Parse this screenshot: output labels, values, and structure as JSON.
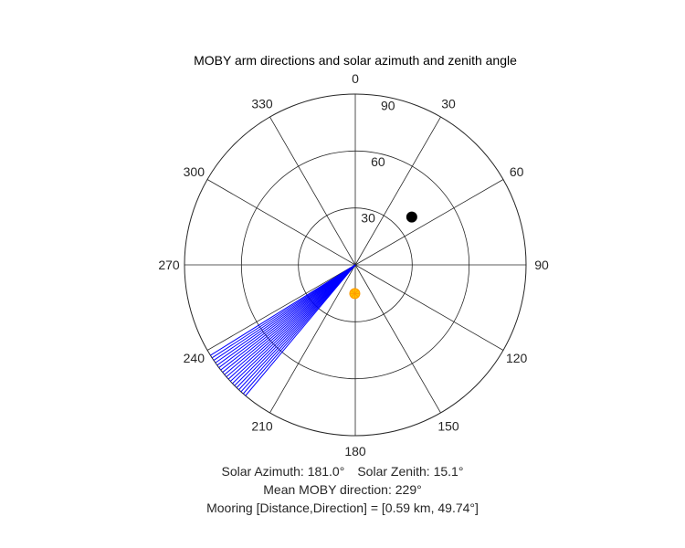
{
  "chart_data": {
    "type": "polar",
    "title": "MOBY arm directions and solar azimuth and zenith angle",
    "theta_direction": "clockwise",
    "theta_zero": "top",
    "theta_tick_labels": [
      "0",
      "30",
      "60",
      "90",
      "120",
      "150",
      "180",
      "210",
      "240",
      "270",
      "300",
      "330"
    ],
    "r_tick_labels": [
      "30",
      "60",
      "90"
    ],
    "r_max": 90,
    "grid": true,
    "series": [
      {
        "type": "lines",
        "color": "#0000ff",
        "r": 90,
        "theta_deg": [
          220,
          221,
          222,
          223,
          224,
          225,
          226,
          227,
          228,
          229,
          230,
          231,
          232,
          233,
          234,
          235,
          236,
          237,
          238
        ]
      },
      {
        "type": "marker",
        "marker": "filled-circle",
        "color": "#000000",
        "theta_deg": 49.74,
        "r": 39
      },
      {
        "type": "marker",
        "marker": "sun",
        "color": "#ffc000",
        "theta_deg": 181.0,
        "r": 15.1
      }
    ],
    "annotations": {
      "solar_azimuth_label": "Solar Azimuth:",
      "solar_azimuth_value": "181.0°",
      "solar_zenith_label": "Solar Zenith:",
      "solar_zenith_value": "15.1°",
      "mean_direction_label": "Mean MOBY direction:",
      "mean_direction_value": "229°",
      "mooring_label": "Mooring [Distance,Direction] =",
      "mooring_value": "[0.59 km, 49.74°]"
    }
  }
}
